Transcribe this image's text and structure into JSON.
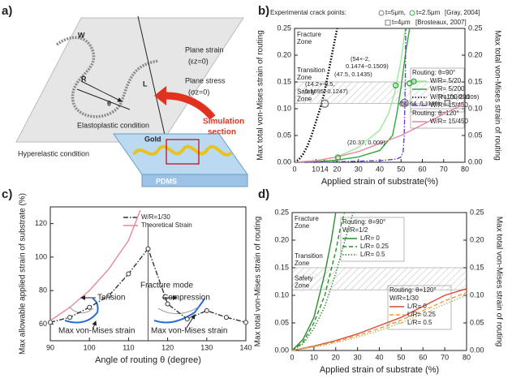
{
  "diagram": {
    "panel_label": "a)",
    "w": "W",
    "r": "R",
    "l": "L",
    "theta": "θ",
    "plane_strain": "Plane strain",
    "plane_strain_cond": "(εz=0)",
    "plane_stress": "Plane stress",
    "plane_stress_cond": "(σz=0)",
    "elastoplastic": "Elastoplastic condition",
    "hyperelastic": "Hyperelastic condition",
    "simulation_1": "Simulation",
    "simulation_2": "section",
    "gold": "Gold",
    "pdms": "PDMS"
  },
  "chart_data": [
    {
      "type": "line",
      "panel_label": "b)",
      "xlabel": "Applied strain of substrate(%)",
      "ylabel": "Max total von-Mises strain of routing",
      "y2label": "Max total von-Mises strain of routing",
      "xlim": [
        0,
        80
      ],
      "xticks": [
        0,
        10,
        14,
        20,
        30,
        40,
        50,
        60,
        70,
        80
      ],
      "ylim": [
        0,
        0.25
      ],
      "yticks": [
        {
          "value": 0,
          "label": "0.00"
        },
        {
          "value": 0.05,
          "label": "0.05"
        },
        {
          "value": 0.1,
          "label": "0.10"
        },
        {
          "value": 0.15,
          "label": "0.15"
        },
        {
          "value": 0.2,
          "label": "0.20"
        },
        {
          "value": 0.25,
          "label": "0.25"
        }
      ],
      "y2lim": [
        0,
        0.25
      ],
      "y2ticks": [
        {
          "value": 0,
          "label": "0.00"
        },
        {
          "value": 0.05,
          "label": "0.05"
        },
        {
          "value": 0.1,
          "label": "0.10"
        },
        {
          "value": 0.15,
          "label": "0.15"
        },
        {
          "value": 0.2,
          "label": "0.20"
        },
        {
          "value": 0.25,
          "label": "0.25"
        }
      ],
      "transition_zone": [
        0.11,
        0.15
      ],
      "zone_labels": [
        [
          "Fracture",
          "Zone"
        ],
        [
          "Transition",
          "Zone"
        ],
        [
          "Safety",
          "Zone"
        ]
      ],
      "points_title": "Experimental crack points:",
      "citations": [
        "[Gray, 2004]",
        "[Brosteaux, 2007]"
      ],
      "point_series": [
        {
          "name": "t=5μm,",
          "marker": "circle",
          "color": "#808080",
          "x": [
            14.2,
            51.64
          ],
          "values": [
            0.1095,
            0.1106
          ]
        },
        {
          "name": "t=2.5μm",
          "marker": "circle",
          "color": "#3cb043",
          "x": [
            20.37,
            47.5,
            54,
            56
          ],
          "values": [
            0.009,
            0.1435,
            0.1474,
            0.1509
          ]
        },
        {
          "name": "t=4μm",
          "marker": "square",
          "color": "#808080",
          "x": [
            71.75
          ],
          "values": [
            0.1109
          ]
        }
      ],
      "annotations": [
        "(54+-2,",
        "0.1474~0.1509)",
        "(47.5, 0.1435)",
        "(14.2+-0.5,",
        "0.1095~0.1247)",
        "(51.64, 0.1106)",
        "(71.75, 0.1109)",
        "(20.37, 0.009)"
      ],
      "series_groups": [
        {
          "title": "Routing: θ=90°",
          "series": [
            {
              "name": "W/R= 5/20",
              "color": "#9be89b",
              "dash": "solid",
              "x": [
                0,
                10,
                20,
                30,
                40,
                44,
                47,
                50,
                52
              ],
              "values": [
                0,
                0.003,
                0.01,
                0.028,
                0.06,
                0.09,
                0.13,
                0.19,
                0.25
              ]
            },
            {
              "name": "W/R= 5/200",
              "color": "#2fa83a",
              "dash": "solid",
              "x": [
                0,
                10,
                20,
                30,
                40,
                46,
                48,
                50,
                52,
                54
              ],
              "values": [
                0,
                0.001,
                0.004,
                0.01,
                0.022,
                0.05,
                0.09,
                0.14,
                0.2,
                0.25
              ]
            },
            {
              "name": "W/R=100/200",
              "color": "#000000",
              "dash": "dotted",
              "x": [
                0,
                2,
                4,
                6,
                8,
                10,
                12,
                14,
                16,
                18,
                20
              ],
              "values": [
                0,
                0.005,
                0.015,
                0.03,
                0.05,
                0.075,
                0.1,
                0.13,
                0.17,
                0.21,
                0.25
              ]
            },
            {
              "name": "W/R= 15/450",
              "color": "#6a3fd0",
              "dash": "dashdot",
              "x": [
                0,
                10,
                20,
                30,
                40,
                48,
                50,
                51,
                51.5,
                52,
                52.2
              ],
              "values": [
                0,
                0,
                0.001,
                0.002,
                0.003,
                0.006,
                0.01,
                0.02,
                0.05,
                0.15,
                0.25
              ]
            }
          ]
        },
        {
          "title": "Routing: θ=120°",
          "series": [
            {
              "name": "W/R= 15/450",
              "color": "#e8899e",
              "dash": "solid",
              "x": [
                0,
                10,
                20,
                30,
                40,
                50,
                60,
                70,
                80
              ],
              "values": [
                0,
                0.003,
                0.01,
                0.02,
                0.035,
                0.05,
                0.07,
                0.09,
                0.11
              ]
            }
          ]
        }
      ]
    },
    {
      "type": "line",
      "panel_label": "c)",
      "xlabel": "Angle of routing θ (degree)",
      "ylabel": "Max allowable applied strain of substrate (%)",
      "xlim": [
        90,
        140
      ],
      "xticks": [
        90,
        100,
        110,
        120,
        130,
        140
      ],
      "ylim": [
        50,
        130
      ],
      "yticks": [
        60,
        80,
        100,
        120
      ],
      "divider_x": 115,
      "annotations": [
        "Fracture mode",
        "Tension",
        "Compression",
        "Max von-Mises strain",
        "Max von-Mises strain"
      ],
      "series": [
        {
          "name": "W/R=1/30",
          "color": "#333333",
          "dash": "dashdot",
          "marker": "circle",
          "x": [
            90,
            95,
            100,
            105,
            110,
            115,
            120,
            125,
            130,
            135,
            140
          ],
          "values": [
            61,
            64,
            70,
            77,
            90,
            105,
            72,
            63,
            68,
            64,
            61
          ]
        },
        {
          "name": "Theoretical Strain",
          "color": "#e8899e",
          "dash": "solid",
          "x": [
            90,
            95,
            100,
            105,
            110,
            113
          ],
          "values": [
            62,
            70,
            80,
            93,
            110,
            128
          ]
        }
      ]
    },
    {
      "type": "line",
      "panel_label": "d)",
      "xlabel": "Applied strain of substrate (%)",
      "ylabel": "Max total von-Mises strain of routing",
      "y2label": "Max total von-Mises strain of routing",
      "xlim": [
        0,
        80
      ],
      "xticks": [
        0,
        10,
        20,
        30,
        40,
        50,
        60,
        70,
        80
      ],
      "ylim": [
        0,
        0.25
      ],
      "yticks": [
        {
          "value": 0,
          "label": "0.00"
        },
        {
          "value": 0.05,
          "label": "0.05"
        },
        {
          "value": 0.1,
          "label": "0.10"
        },
        {
          "value": 0.15,
          "label": "0.15"
        },
        {
          "value": 0.2,
          "label": "0.20"
        },
        {
          "value": 0.25,
          "label": "0.25"
        }
      ],
      "y2lim": [
        0,
        0.25
      ],
      "y2ticks": [
        {
          "value": 0,
          "label": "0.00"
        },
        {
          "value": 0.05,
          "label": "0.05"
        },
        {
          "value": 0.1,
          "label": "0.10"
        },
        {
          "value": 0.15,
          "label": "0.15"
        },
        {
          "value": 0.2,
          "label": "0.20"
        },
        {
          "value": 0.25,
          "label": "0.25"
        }
      ],
      "transition_zone": [
        0.11,
        0.15
      ],
      "zone_labels": [
        [
          "Fracture",
          "Zone"
        ],
        [
          "Transition",
          "Zone"
        ],
        [
          "Safety",
          "Zone"
        ]
      ],
      "series_groups": [
        {
          "title": "Routing: θ=90°",
          "subtitle": "W/R=1/2",
          "series": [
            {
              "name": "L/R= 0",
              "color": "#2e8b2e",
              "dash": "solid",
              "x": [
                0,
                5,
                10,
                15,
                18,
                20
              ],
              "values": [
                0,
                0.02,
                0.06,
                0.14,
                0.2,
                0.25
              ]
            },
            {
              "name": "L/R= 0.25",
              "color": "#2e8b2e",
              "dash": "dashed",
              "x": [
                0,
                5,
                10,
                15,
                20,
                22,
                24
              ],
              "values": [
                0,
                0.015,
                0.05,
                0.1,
                0.18,
                0.22,
                0.25
              ]
            },
            {
              "name": "L/R= 0.5",
              "color": "#2e8b2e",
              "dash": "dotted",
              "x": [
                0,
                5,
                10,
                15,
                20,
                25,
                28
              ],
              "values": [
                0,
                0.012,
                0.04,
                0.08,
                0.14,
                0.21,
                0.25
              ]
            }
          ]
        },
        {
          "title": "Routing: θ=120°",
          "subtitle": "W/R=1/30",
          "series": [
            {
              "name": "L/R= 0",
              "color": "#d9473a",
              "dash": "solid",
              "x": [
                0,
                10,
                20,
                30,
                40,
                50,
                60,
                70,
                80
              ],
              "values": [
                0,
                0.008,
                0.018,
                0.03,
                0.045,
                0.06,
                0.08,
                0.1,
                0.112
              ]
            },
            {
              "name": "L/R= 0.25",
              "color": "#e89a3a",
              "dash": "dashed",
              "x": [
                0,
                10,
                20,
                30,
                40,
                50,
                60,
                70,
                80
              ],
              "values": [
                0,
                0.007,
                0.016,
                0.027,
                0.04,
                0.055,
                0.072,
                0.09,
                0.105
              ]
            },
            {
              "name": "L/R= 0.5",
              "color": "#b5b56a",
              "dash": "dotted",
              "x": [
                0,
                10,
                20,
                30,
                40,
                50,
                60,
                70,
                80
              ],
              "values": [
                0,
                0.006,
                0.014,
                0.024,
                0.036,
                0.05,
                0.066,
                0.084,
                0.1
              ]
            }
          ]
        }
      ]
    }
  ]
}
